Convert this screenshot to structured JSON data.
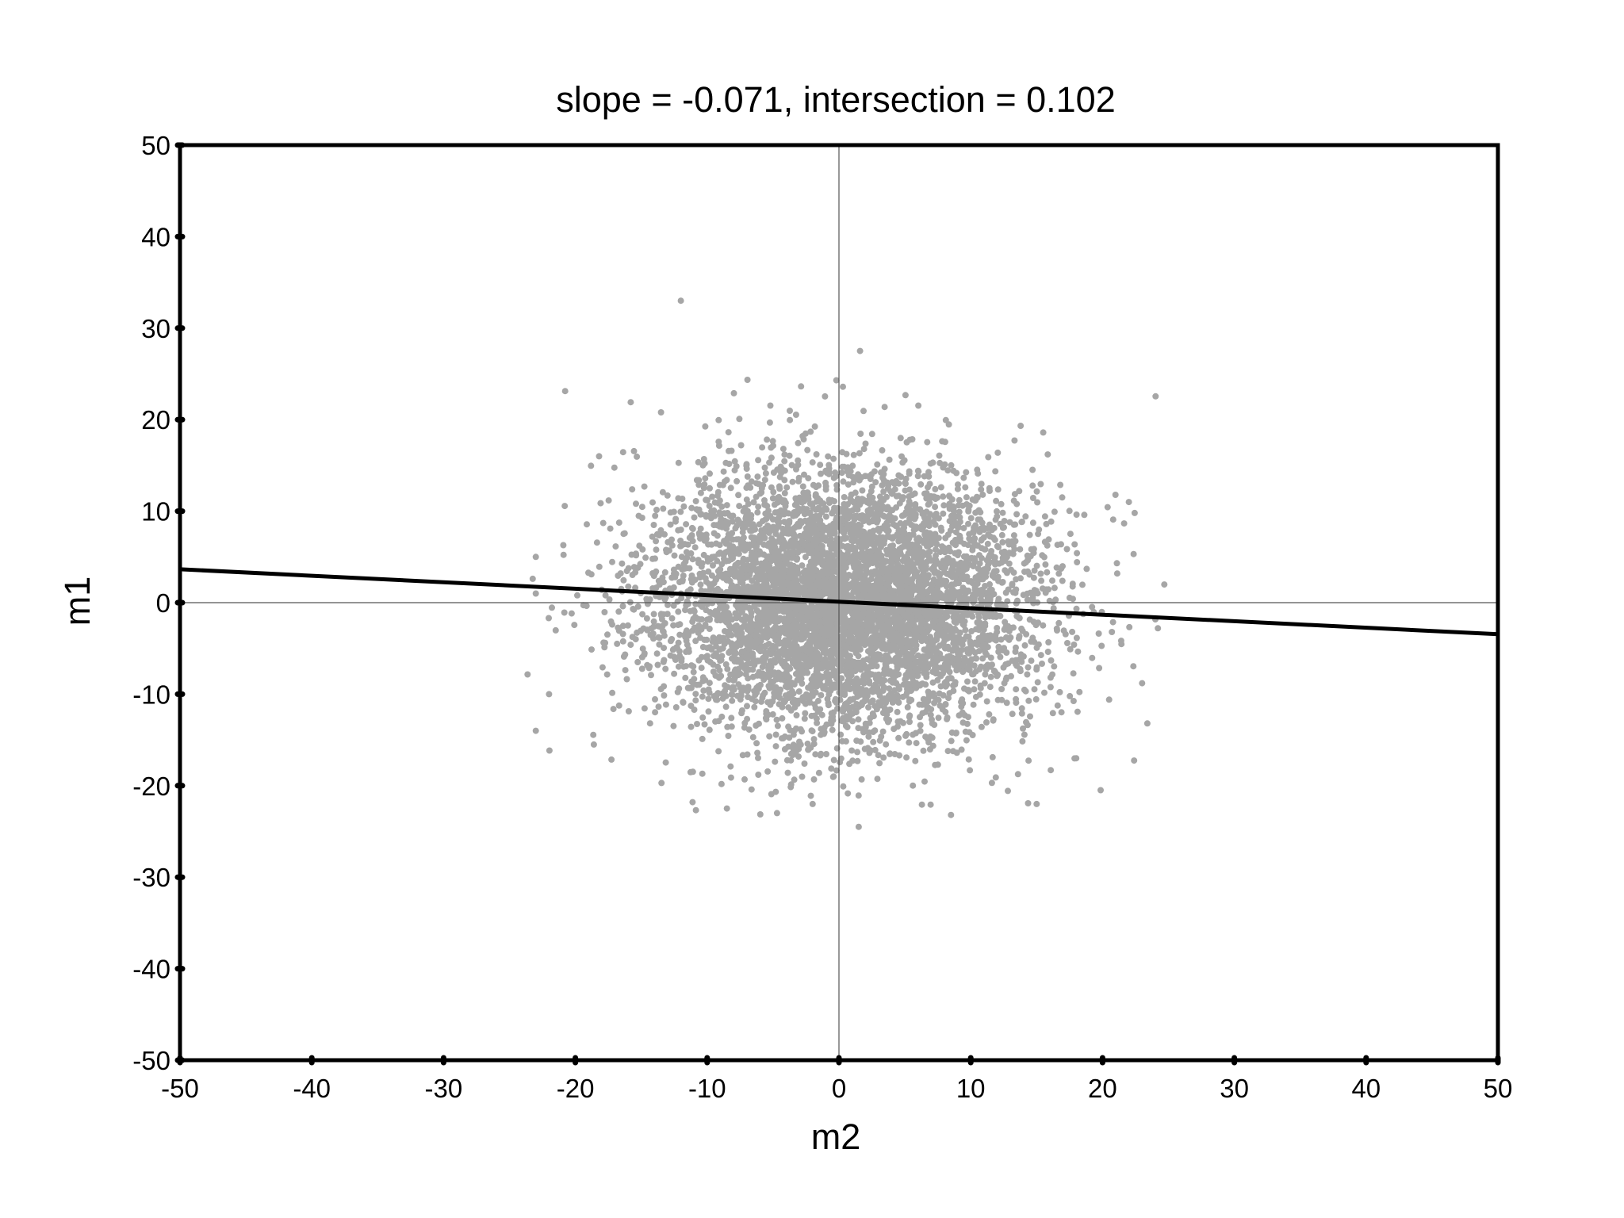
{
  "chart_data": {
    "type": "scatter",
    "title": "slope = -0.071, intersection = 0.102",
    "xlabel": "m2",
    "ylabel": "m1",
    "xlim": [
      -50,
      50
    ],
    "ylim": [
      -50,
      50
    ],
    "xticks": [
      "-50",
      "-40",
      "-30",
      "-20",
      "-10",
      "0",
      "10",
      "20",
      "30",
      "40",
      "50"
    ],
    "yticks": [
      "-50",
      "-40",
      "-30",
      "-20",
      "-10",
      "0",
      "10",
      "20",
      "30",
      "40",
      "50"
    ],
    "grid": false,
    "zero_lines": true,
    "point_color": "#a6a6a6",
    "line_color": "#000000",
    "fit_line": {
      "slope": -0.071,
      "intercept": 0.102
    },
    "point_distribution": {
      "n": 6000,
      "x_mean": 0.5,
      "x_std": 7.2,
      "y_mean": 0.0,
      "y_std": 7.3
    },
    "points": [
      {
        "x": -12,
        "y": 33
      },
      {
        "x": 1.6,
        "y": 27.5
      },
      {
        "x": -0.2,
        "y": 24.3
      },
      {
        "x": 0.3,
        "y": 23.6
      },
      {
        "x": -13.5,
        "y": 20.8
      },
      {
        "x": 15.5,
        "y": 18.6
      },
      {
        "x": -18.2,
        "y": 16
      },
      {
        "x": 22,
        "y": 11
      },
      {
        "x": -23,
        "y": 5
      },
      {
        "x": -23,
        "y": 1
      },
      {
        "x": 24.2,
        "y": -2.8
      },
      {
        "x": 23,
        "y": -8.8
      },
      {
        "x": 20.5,
        "y": -10.6
      },
      {
        "x": -22,
        "y": -10
      },
      {
        "x": -23,
        "y": -14
      },
      {
        "x": 23.4,
        "y": -13.2
      },
      {
        "x": -18.6,
        "y": -15.5
      },
      {
        "x": 18,
        "y": -17
      },
      {
        "x": 15,
        "y": -22
      },
      {
        "x": 8.5,
        "y": -23.2
      },
      {
        "x": -4.7,
        "y": -23
      },
      {
        "x": -8.5,
        "y": -22.5
      },
      {
        "x": 1.5,
        "y": -24.5
      },
      {
        "x": -2,
        "y": -22
      }
    ]
  }
}
